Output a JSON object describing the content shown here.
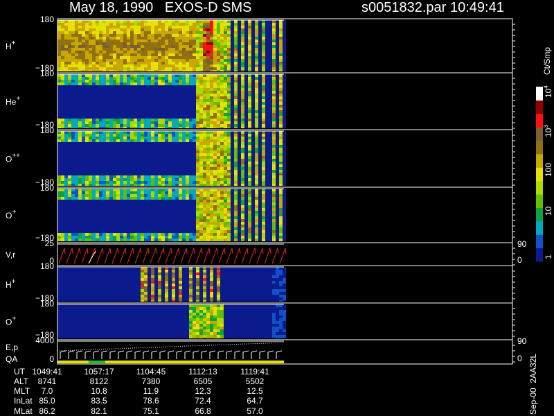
{
  "header": {
    "title": "May 18, 1990   EXOS-D SMS",
    "file": "s0051832.par",
    "time": "10:49:41"
  },
  "panels": [
    {
      "label": "H",
      "sup": "+",
      "ticks_left": [
        "180",
        "−180"
      ]
    },
    {
      "label": "He",
      "sup": "+",
      "ticks_left": [
        "180",
        "−180"
      ]
    },
    {
      "label": "O",
      "sup": "++",
      "ticks_left": [
        "180",
        "−180"
      ]
    },
    {
      "label": "O",
      "sup": "+",
      "ticks_left": [
        "180",
        "−180"
      ]
    },
    {
      "label": "V,r",
      "ticks_left": [
        "25",
        "0"
      ],
      "ticks_right": [
        "90",
        "0"
      ]
    },
    {
      "label": "H",
      "sup": "+",
      "ticks_left": [
        "180",
        "−180"
      ]
    },
    {
      "label": "O",
      "sup": "+",
      "ticks_left": [
        "180",
        "−180"
      ]
    },
    {
      "label": "E,p",
      "label2": "QA",
      "ticks_left": [
        "4000",
        "0"
      ],
      "ticks_right": [
        "90",
        "0"
      ]
    }
  ],
  "colorbar": {
    "unit": "Ct/Smp",
    "labels": [
      {
        "text": "10",
        "sup": "4"
      },
      {
        "text": "10",
        "sup": "3"
      },
      {
        "text": "100"
      },
      {
        "text": "10"
      },
      {
        "text": "1"
      }
    ]
  },
  "table": {
    "row_labels": [
      "UT",
      "ALT",
      "MLT",
      "InLat",
      "MLat"
    ],
    "rows": [
      [
        "1049:41",
        "1057:17",
        "1104:45",
        "1112:13",
        "1119:41"
      ],
      [
        "8741",
        "8122",
        "7380",
        "6505",
        "5502"
      ],
      [
        "7.0",
        "10.8",
        "11.9",
        "12.3",
        "12.5"
      ],
      [
        "85.0",
        "83.5",
        "78.6",
        "72.4",
        "64.7"
      ],
      [
        "86.2",
        "82.1",
        "75.1",
        "66.8",
        "57.0"
      ]
    ]
  },
  "footer": "Sep-00  2AA32L"
}
